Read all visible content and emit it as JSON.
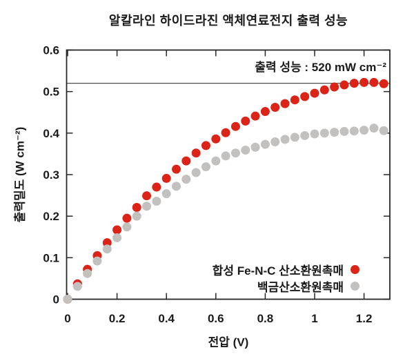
{
  "figure": {
    "background": "#ffffff",
    "text_color": "#1a1a1a"
  },
  "chart_data": {
    "type": "scatter",
    "title": "알칼라인 하이드라진 액체연료전지 출력 성능",
    "xlabel": "전압 (V)",
    "ylabel": "출력밀도 (W cm⁻²)",
    "xlim": [
      0,
      1.3
    ],
    "ylim": [
      0,
      0.6
    ],
    "grid": false,
    "axis_color": "#262626",
    "xticks": {
      "values": [
        0,
        0.2,
        0.4,
        0.6,
        0.8,
        1.0,
        1.2
      ],
      "labels": [
        "0",
        "0.2",
        "0.4",
        "0.6",
        "0.8",
        "1",
        "1.2"
      ]
    },
    "yticks": {
      "values": [
        0,
        0.1,
        0.2,
        0.3,
        0.4,
        0.5,
        0.6
      ],
      "labels": [
        "0",
        "0.1",
        "0.2",
        "0.3",
        "0.4",
        "0.5",
        "0.6"
      ]
    },
    "x": [
      0,
      0.04,
      0.08,
      0.12,
      0.16,
      0.2,
      0.24,
      0.28,
      0.32,
      0.36,
      0.4,
      0.44,
      0.48,
      0.52,
      0.56,
      0.6,
      0.64,
      0.68,
      0.72,
      0.76,
      0.8,
      0.84,
      0.88,
      0.92,
      0.96,
      1.0,
      1.04,
      1.08,
      1.12,
      1.16,
      1.2,
      1.24,
      1.28
    ],
    "series": [
      {
        "name": "합성 Fe-N-C 산소환원촉매",
        "color": "#dc2317",
        "marker": "circle",
        "values": [
          0,
          0.037,
          0.072,
          0.105,
          0.136,
          0.167,
          0.195,
          0.221,
          0.249,
          0.27,
          0.291,
          0.313,
          0.333,
          0.352,
          0.37,
          0.386,
          0.401,
          0.416,
          0.429,
          0.441,
          0.452,
          0.462,
          0.471,
          0.48,
          0.488,
          0.496,
          0.504,
          0.511,
          0.516,
          0.52,
          0.522,
          0.522,
          0.519
        ]
      },
      {
        "name": "백금산소환원촉매",
        "color": "#c2c1c0",
        "marker": "circle",
        "values": [
          0,
          0.031,
          0.062,
          0.092,
          0.121,
          0.148,
          0.174,
          0.2,
          0.224,
          0.236,
          0.254,
          0.272,
          0.289,
          0.305,
          0.319,
          0.333,
          0.345,
          0.352,
          0.359,
          0.366,
          0.373,
          0.379,
          0.385,
          0.39,
          0.394,
          0.398,
          0.4,
          0.402,
          0.404,
          0.405,
          0.407,
          0.412,
          0.406
        ]
      }
    ],
    "reference_line": {
      "y": 0.52,
      "color": "#4d4d4d",
      "label": "출력 성능 : 520 mW cm⁻²"
    },
    "legend_position": "inside-bottom-right"
  }
}
